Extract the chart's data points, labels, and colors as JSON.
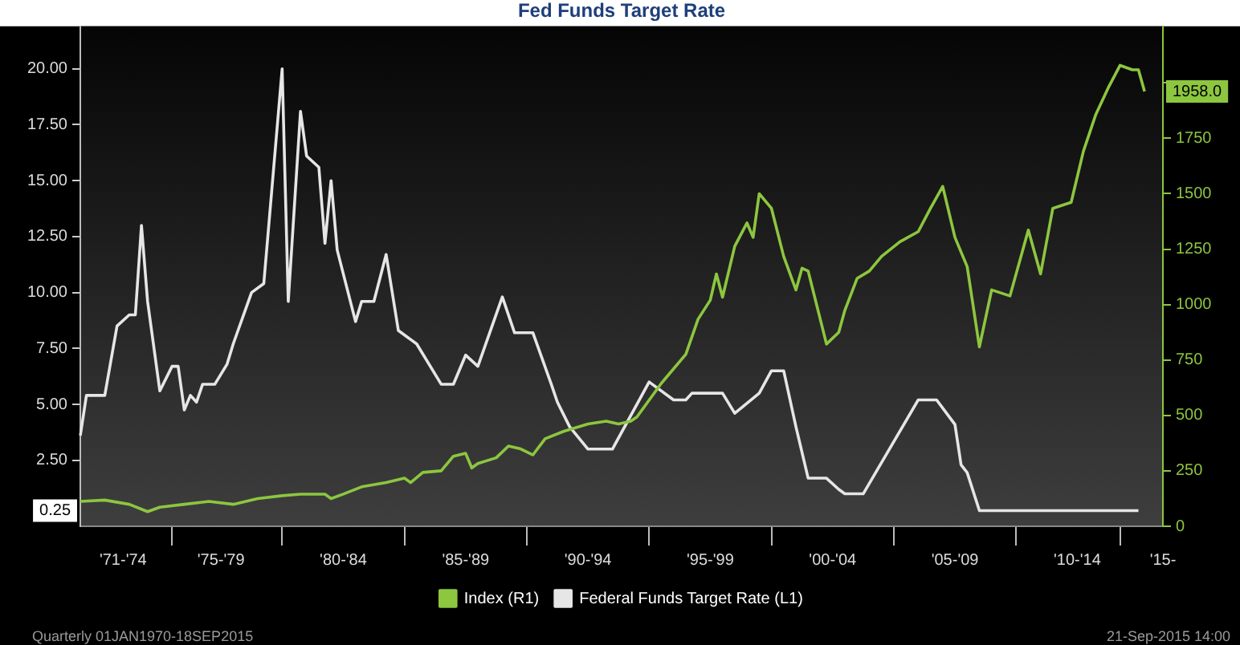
{
  "chart_data": {
    "type": "line",
    "title": "Fed Funds Target Rate",
    "categories": [
      null,
      null,
      null,
      null,
      null,
      null,
      null,
      "'71-'74",
      null,
      null,
      null,
      null,
      null,
      null,
      null,
      null,
      null,
      null,
      null,
      null,
      null,
      null,
      null,
      "'75-'79",
      null,
      null,
      null,
      null,
      null,
      null,
      null,
      null,
      null,
      null,
      null,
      null,
      null,
      null,
      null,
      null,
      null,
      null,
      null,
      "'80-'84",
      null,
      null,
      null,
      null,
      null,
      null,
      null,
      null,
      null,
      null,
      null,
      null,
      null,
      null,
      null,
      null,
      null,
      null,
      null,
      "'85-'89",
      null,
      null,
      null,
      null,
      null,
      null,
      null,
      null,
      null,
      null,
      null,
      null,
      null,
      null,
      null,
      null,
      null,
      null,
      null,
      "'90-'94",
      null,
      null,
      null,
      null,
      null,
      null,
      null,
      null,
      null,
      null,
      null,
      null,
      null,
      null,
      null,
      null,
      null,
      null,
      null,
      "'95-'99",
      null,
      null,
      null,
      null,
      null,
      null,
      null,
      null,
      null,
      null,
      null,
      null,
      null,
      null,
      null,
      null,
      null,
      null,
      null,
      "'00-'04",
      null,
      null,
      null,
      null,
      null,
      null,
      null,
      null,
      null,
      null,
      null,
      null,
      null,
      null,
      null,
      null,
      null,
      null,
      null,
      "'05-'09",
      null,
      null,
      null,
      null,
      null,
      null,
      null,
      null,
      null,
      null,
      null,
      null,
      null,
      null,
      null,
      null,
      null,
      null,
      null,
      "'10-'14",
      null,
      null,
      null,
      null,
      null,
      null,
      null,
      null,
      null,
      null,
      null,
      null,
      null,
      "'15-"
    ],
    "ylim": [
      -0.45,
      21.9
    ],
    "yticks": [
      {
        "value": 2.5,
        "label": "2.50"
      },
      {
        "value": 5,
        "label": "5.00"
      },
      {
        "value": 7.5,
        "label": "7.50"
      },
      {
        "value": 10,
        "label": "10.00"
      },
      {
        "value": 12.5,
        "label": "12.50"
      },
      {
        "value": 15,
        "label": "15.00"
      },
      {
        "value": 17.5,
        "label": "17.50"
      },
      {
        "value": 20,
        "label": "20.00"
      }
    ],
    "y2lim": [
      0,
      2255
    ],
    "y2ticks": [
      0,
      250,
      500,
      750,
      1000,
      1250,
      1500,
      1750,
      {
        "value": 2000,
        "label": null
      }
    ],
    "legend": "bottom",
    "grid": false,
    "marker": "none",
    "line_style": "solid",
    "series": [
      {
        "name": "Index (R1)",
        "color": "#8dc63f",
        "axis": "y2",
        "values": [
          112,
          null,
          null,
          null,
          118,
          null,
          null,
          null,
          99,
          null,
          null,
          66,
          null,
          86,
          null,
          null,
          null,
          99,
          null,
          null,
          null,
          112,
          null,
          null,
          null,
          99,
          null,
          null,
          null,
          125,
          null,
          null,
          null,
          138,
          null,
          null,
          145,
          null,
          null,
          null,
          145,
          125,
          null,
          145,
          null,
          null,
          178,
          null,
          null,
          null,
          197,
          null,
          null,
          217,
          197,
          null,
          243,
          null,
          null,
          250,
          null,
          316,
          null,
          329,
          263,
          283,
          null,
          null,
          309,
          null,
          362,
          null,
          349,
          null,
          322,
          null,
          395,
          null,
          null,
          428,
          null,
          null,
          null,
          461,
          null,
          null,
          474,
          null,
          461,
          null,
          474,
          493,
          null,
          null,
          null,
          645,
          null,
          null,
          null,
          776,
          null,
          934,
          null,
          1020,
          1138,
          1033,
          null,
          1263,
          null,
          1368,
          1303,
          1500,
          null,
          1434,
          null,
          1217,
          null,
          1066,
          1164,
          1151,
          null,
          null,
          822,
          null,
          875,
          974,
          null,
          1118,
          null,
          1151,
          null,
          1217,
          null,
          null,
          1283,
          null,
          null,
          1329,
          null,
          1434,
          null,
          1533,
          null,
          1303,
          null,
          1171,
          null,
          809,
          null,
          1066,
          null,
          null,
          1039,
          null,
          null,
          1336,
          null,
          1138,
          null,
          1434,
          null,
          null,
          1461,
          null,
          1691,
          null,
          1855,
          null,
          1974,
          null,
          2079,
          null,
          2059,
          2059,
          1961,
          null,
          null,
          null
        ]
      },
      {
        "name": "Federal Funds Target Rate (L1)",
        "color": "#e6e6e6",
        "values": [
          3.6,
          5.4,
          null,
          null,
          5.4,
          null,
          8.5,
          null,
          9.0,
          9.0,
          13.0,
          9.6,
          null,
          5.6,
          null,
          6.7,
          6.7,
          4.75,
          5.4,
          5.1,
          5.9,
          null,
          5.9,
          null,
          6.8,
          7.7,
          null,
          null,
          10.0,
          null,
          10.4,
          null,
          null,
          20.0,
          9.6,
          null,
          18.1,
          16.1,
          null,
          15.6,
          12.2,
          15.0,
          11.9,
          null,
          null,
          8.7,
          9.6,
          null,
          9.6,
          null,
          11.7,
          null,
          8.3,
          null,
          7.9,
          7.7,
          null,
          null,
          null,
          5.9,
          null,
          5.9,
          null,
          7.2,
          null,
          6.7,
          null,
          null,
          null,
          9.8,
          null,
          8.2,
          null,
          null,
          8.2,
          null,
          null,
          5.9,
          5.1,
          null,
          4.0,
          null,
          null,
          3.0,
          null,
          null,
          null,
          3.0,
          null,
          null,
          null,
          null,
          null,
          6.0,
          null,
          null,
          null,
          5.2,
          null,
          5.2,
          5.5,
          null,
          null,
          null,
          null,
          5.5,
          null,
          4.6,
          null,
          null,
          null,
          5.5,
          null,
          6.5,
          null,
          6.5,
          null,
          4.0,
          null,
          1.7,
          null,
          null,
          1.7,
          null,
          1.2,
          1.0,
          null,
          null,
          1.0,
          null,
          null,
          null,
          null,
          null,
          null,
          null,
          null,
          5.2,
          null,
          null,
          5.2,
          null,
          null,
          4.1,
          2.3,
          1.95,
          null,
          0.25,
          null,
          null,
          null,
          null,
          null,
          null,
          null,
          null,
          null,
          null,
          null,
          null,
          null,
          null,
          null,
          null,
          null,
          null,
          null,
          null,
          null,
          null,
          null,
          null,
          null,
          0.25,
          null,
          null,
          null,
          null
        ]
      }
    ],
    "annotations": [
      "1958.0",
      "0.25",
      "Quarterly 01JAN1970-18SEP2015",
      "21-Sep-2015 14:00"
    ]
  }
}
